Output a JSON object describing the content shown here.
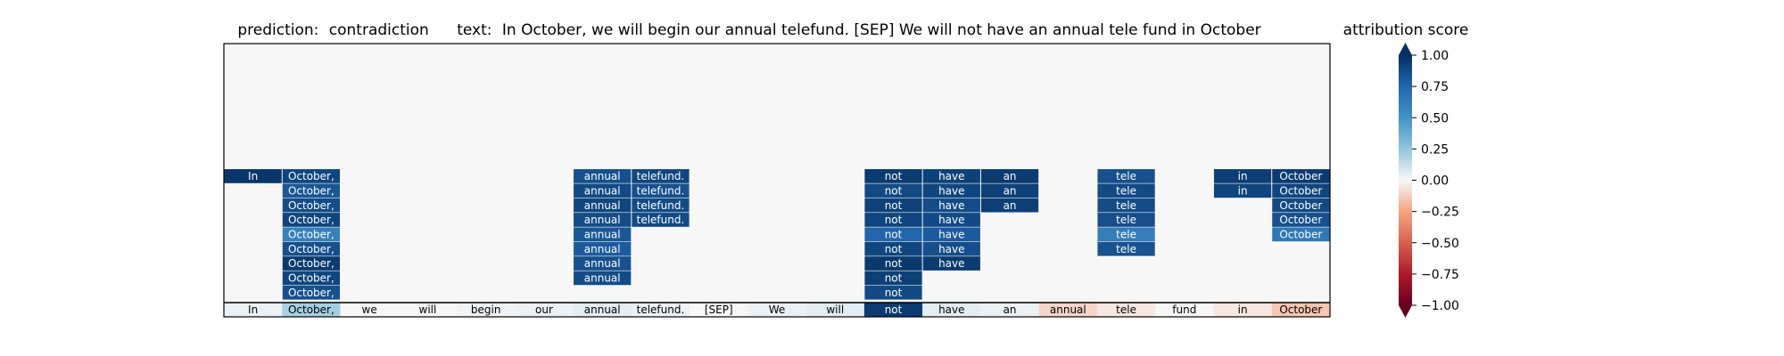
{
  "chart_data": {
    "type": "heatmap",
    "title": {
      "prediction_label": "prediction:",
      "prediction": "contradiction",
      "text_label": "text:",
      "text": "In October, we will begin our annual telefund. [SEP] We will not have an annual tele fund in October"
    },
    "tokens": [
      "In",
      "October,",
      "we",
      "will",
      "begin",
      "our",
      "annual",
      "telefund.",
      "[SEP]",
      "We",
      "will",
      "not",
      "have",
      "an",
      "annual",
      "tele",
      "fund",
      "in",
      "October"
    ],
    "bottom_row_scores": [
      0.03,
      0.2,
      0.0,
      0.0,
      0.02,
      0.03,
      0.05,
      0.03,
      0.0,
      0.03,
      0.05,
      0.95,
      0.05,
      0.03,
      -0.1,
      -0.05,
      0.0,
      -0.05,
      -0.15
    ],
    "stacked_columns": {
      "In": [
        0.97
      ],
      "October,": [
        0.9,
        0.82,
        0.87,
        0.9,
        0.6,
        0.85,
        0.95,
        0.9,
        0.85
      ],
      "annual": [
        0.85,
        0.88,
        0.9,
        0.87,
        0.82,
        0.8,
        0.85,
        0.87
      ],
      "telefund.": [
        0.9,
        0.85,
        0.87,
        0.88
      ],
      "not": [
        0.95,
        0.88,
        0.92,
        0.9,
        0.75,
        0.9,
        0.96,
        0.93,
        0.88
      ],
      "have": [
        0.92,
        0.9,
        0.87,
        0.88,
        0.8,
        0.86,
        0.95
      ],
      "an": [
        0.95,
        0.92,
        0.93
      ],
      "tele": [
        0.85,
        0.88,
        0.87,
        0.86,
        0.62,
        0.84
      ],
      "in": [
        0.93,
        0.9
      ],
      "October": [
        0.95,
        0.9,
        0.88,
        0.85,
        0.65
      ]
    },
    "colorbar": {
      "label": "attribution score",
      "ticks": [
        "1.00",
        "0.75",
        "0.50",
        "0.25",
        "0.00",
        "−0.25",
        "−0.50",
        "−0.75",
        "−1.00"
      ],
      "range": [
        -1,
        1
      ],
      "colormap": "RdBu"
    },
    "grid": false
  }
}
